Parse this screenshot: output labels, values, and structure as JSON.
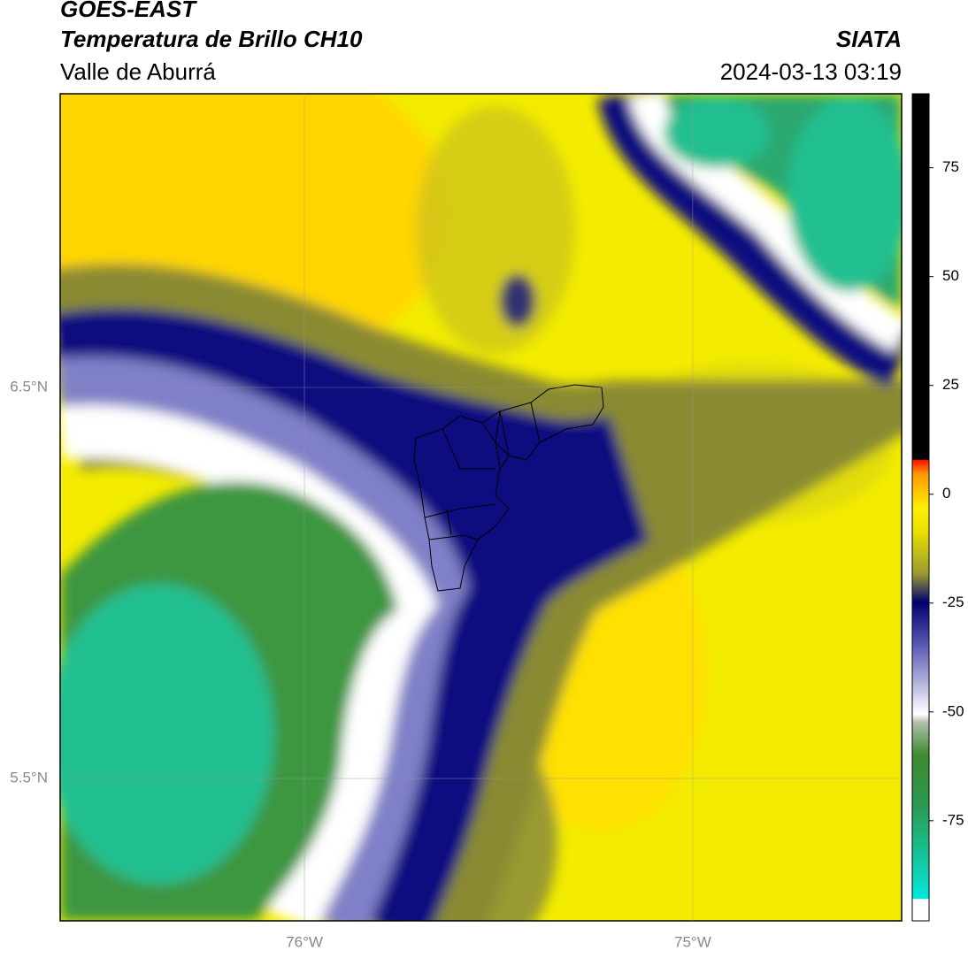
{
  "header": {
    "title": "GOES-EAST",
    "subtitle": "Temperatura de Brillo CH10",
    "region": "Valle de Aburrá",
    "source": "SIATA",
    "datetime": "2024-03-13 03:19"
  },
  "map": {
    "latlim": [
      5.136,
      7.251
    ],
    "lonlim": [
      -76.629,
      -74.462
    ],
    "lat_ticks": [
      {
        "value": 6.5,
        "label": "6.5°N"
      },
      {
        "value": 5.5,
        "label": "5.5°N"
      }
    ],
    "lon_ticks": [
      {
        "value": -76,
        "label": "76°W"
      },
      {
        "value": -75,
        "label": "75°W"
      }
    ]
  },
  "colorbar": {
    "lim": [
      -98,
      92
    ],
    "ticks": [
      75,
      50,
      25,
      0,
      -25,
      -50,
      -75
    ]
  }
}
